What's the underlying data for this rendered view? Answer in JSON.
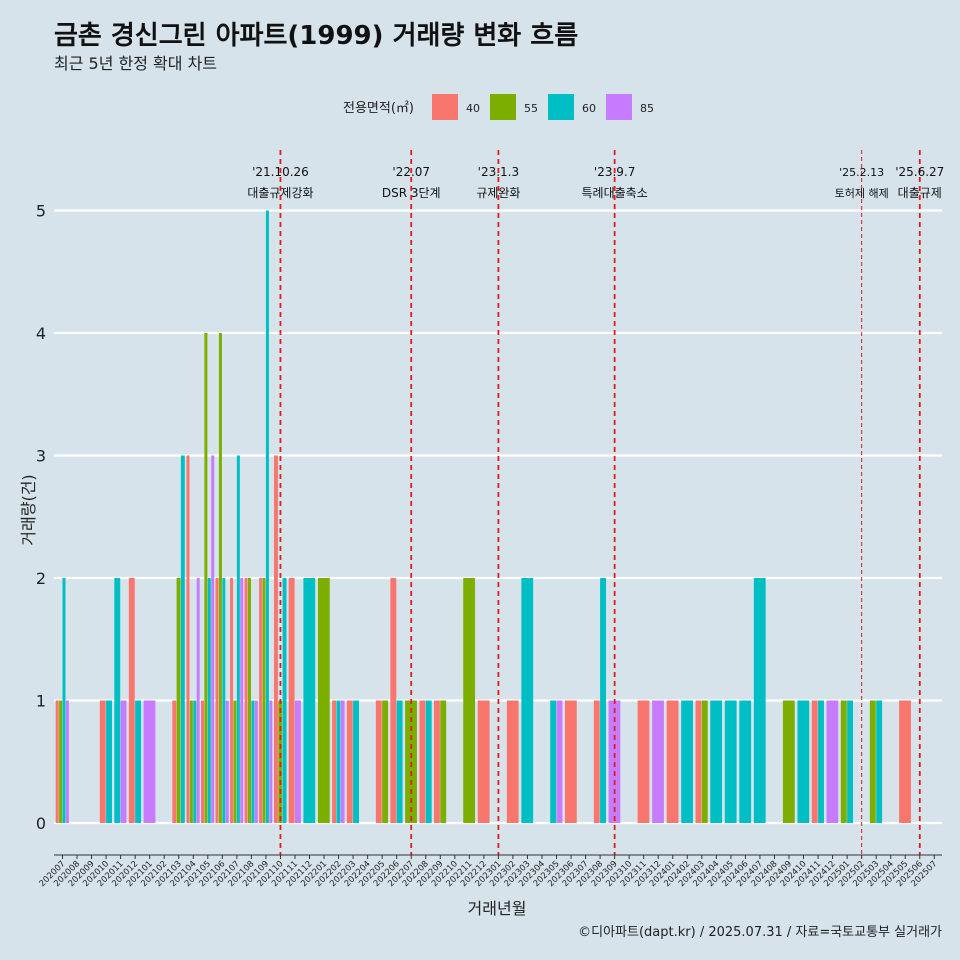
{
  "title": "금촌 경신그린 아파트(1999) 거래량 변화 흐름",
  "subtitle": "최근 5년 한정 확대 차트",
  "caption": "©디아파트(dapt.kr) / 2025.07.31 / 자료=국토교통부 실거래가",
  "chart_data": {
    "type": "bar",
    "title": "금촌 경신그린 아파트(1999) 거래량 변화 흐름",
    "subtitle": "최근 5년 한정 확대 차트",
    "xlabel": "거래년월",
    "ylabel": "거래량(건)",
    "ylim": [
      0,
      5
    ],
    "yticks": [
      0,
      1,
      2,
      3,
      4,
      5
    ],
    "grid": "horizontal",
    "legend": {
      "title": "전용면적(㎡)",
      "position": "top"
    },
    "colors": {
      "40": "#f8766d",
      "55": "#7cae00",
      "60": "#00bfc4",
      "85": "#c77cff"
    },
    "event_line_color": "#e41a1c",
    "categories": [
      "202007",
      "202008",
      "202009",
      "202010",
      "202011",
      "202012",
      "202101",
      "202102",
      "202103",
      "202104",
      "202105",
      "202106",
      "202107",
      "202108",
      "202109",
      "202110",
      "202111",
      "202112",
      "202201",
      "202202",
      "202203",
      "202204",
      "202205",
      "202206",
      "202207",
      "202208",
      "202209",
      "202210",
      "202211",
      "202212",
      "202301",
      "202302",
      "202303",
      "202304",
      "202305",
      "202306",
      "202307",
      "202308",
      "202309",
      "202310",
      "202311",
      "202312",
      "202401",
      "202402",
      "202403",
      "202404",
      "202405",
      "202406",
      "202407",
      "202408",
      "202409",
      "202410",
      "202411",
      "202412",
      "202501",
      "202502",
      "202503",
      "202504",
      "202505",
      "202506",
      "202507"
    ],
    "bars": [
      {
        "month": "202007",
        "values": {
          "40": 1,
          "55": 1,
          "60": 2,
          "85": 1
        }
      },
      {
        "month": "202010",
        "values": {
          "40": 1,
          "60": 1
        }
      },
      {
        "month": "202011",
        "values": {
          "60": 2,
          "85": 1
        }
      },
      {
        "month": "202012",
        "values": {
          "40": 2,
          "60": 1
        }
      },
      {
        "month": "202101",
        "values": {
          "85": 1
        }
      },
      {
        "month": "202103",
        "values": {
          "40": 1,
          "55": 2,
          "60": 3
        }
      },
      {
        "month": "202104",
        "values": {
          "40": 3,
          "55": 1,
          "60": 1,
          "85": 2
        }
      },
      {
        "month": "202105",
        "values": {
          "40": 1,
          "55": 4,
          "60": 2,
          "85": 3
        }
      },
      {
        "month": "202106",
        "values": {
          "40": 2,
          "55": 4,
          "60": 2,
          "85": 1
        }
      },
      {
        "month": "202107",
        "values": {
          "40": 2,
          "55": 1,
          "60": 3,
          "85": 2
        }
      },
      {
        "month": "202108",
        "values": {
          "40": 2,
          "55": 2,
          "60": 1,
          "85": 1
        }
      },
      {
        "month": "202109",
        "values": {
          "40": 2,
          "55": 2,
          "60": 5,
          "85": 1
        }
      },
      {
        "month": "202110",
        "values": {
          "40": 3,
          "55": 1,
          "60": 2
        }
      },
      {
        "month": "202111",
        "values": {
          "40": 2,
          "85": 1
        }
      },
      {
        "month": "202112",
        "values": {
          "60": 2
        }
      },
      {
        "month": "202201",
        "values": {
          "55": 2
        }
      },
      {
        "month": "202202",
        "values": {
          "40": 1,
          "60": 1,
          "85": 1
        }
      },
      {
        "month": "202203",
        "values": {
          "40": 1,
          "60": 1
        }
      },
      {
        "month": "202205",
        "values": {
          "40": 1,
          "55": 1
        }
      },
      {
        "month": "202206",
        "values": {
          "40": 2,
          "60": 1
        }
      },
      {
        "month": "202207",
        "values": {
          "55": 1
        }
      },
      {
        "month": "202208",
        "values": {
          "40": 1,
          "60": 1
        }
      },
      {
        "month": "202209",
        "values": {
          "40": 1,
          "55": 1
        }
      },
      {
        "month": "202211",
        "values": {
          "55": 2
        }
      },
      {
        "month": "202212",
        "values": {
          "40": 1
        }
      },
      {
        "month": "202302",
        "values": {
          "40": 1
        }
      },
      {
        "month": "202303",
        "values": {
          "60": 2
        }
      },
      {
        "month": "202305",
        "values": {
          "60": 1,
          "85": 1
        }
      },
      {
        "month": "202306",
        "values": {
          "40": 1
        }
      },
      {
        "month": "202308",
        "values": {
          "40": 1,
          "60": 2
        }
      },
      {
        "month": "202309",
        "values": {
          "85": 1
        }
      },
      {
        "month": "202311",
        "values": {
          "40": 1
        }
      },
      {
        "month": "202312",
        "values": {
          "85": 1
        }
      },
      {
        "month": "202401",
        "values": {
          "40": 1
        }
      },
      {
        "month": "202402",
        "values": {
          "60": 1
        }
      },
      {
        "month": "202403",
        "values": {
          "40": 1,
          "55": 1
        }
      },
      {
        "month": "202404",
        "values": {
          "60": 1
        }
      },
      {
        "month": "202405",
        "values": {
          "60": 1
        }
      },
      {
        "month": "202406",
        "values": {
          "60": 1
        }
      },
      {
        "month": "202407",
        "values": {
          "60": 2
        }
      },
      {
        "month": "202409",
        "values": {
          "55": 1
        }
      },
      {
        "month": "202410",
        "values": {
          "60": 1
        }
      },
      {
        "month": "202411",
        "values": {
          "40": 1,
          "60": 1
        }
      },
      {
        "month": "202412",
        "values": {
          "85": 1
        }
      },
      {
        "month": "202501",
        "values": {
          "55": 1,
          "60": 1
        }
      },
      {
        "month": "202503",
        "values": {
          "55": 1,
          "60": 1
        }
      },
      {
        "month": "202505",
        "values": {
          "40": 1
        }
      }
    ],
    "events": [
      {
        "date": "'21.10.26",
        "label": "대출규제강화",
        "month": "202110",
        "style": "dashed"
      },
      {
        "date": "'22.07",
        "label": "DSR 3단계",
        "month": "202207",
        "style": "dashed"
      },
      {
        "date": "'23.1.3",
        "label": "규제완화",
        "month": "202301",
        "style": "dashed"
      },
      {
        "date": "'23.9.7",
        "label": "특례대출축소",
        "month": "202309",
        "style": "dashed"
      },
      {
        "date": "'25.2.13",
        "label": "토허제 해제",
        "month": "202502",
        "style": "thin"
      },
      {
        "date": "'25.6.27",
        "label": "대출규제",
        "month": "202506",
        "style": "dashed"
      }
    ]
  }
}
